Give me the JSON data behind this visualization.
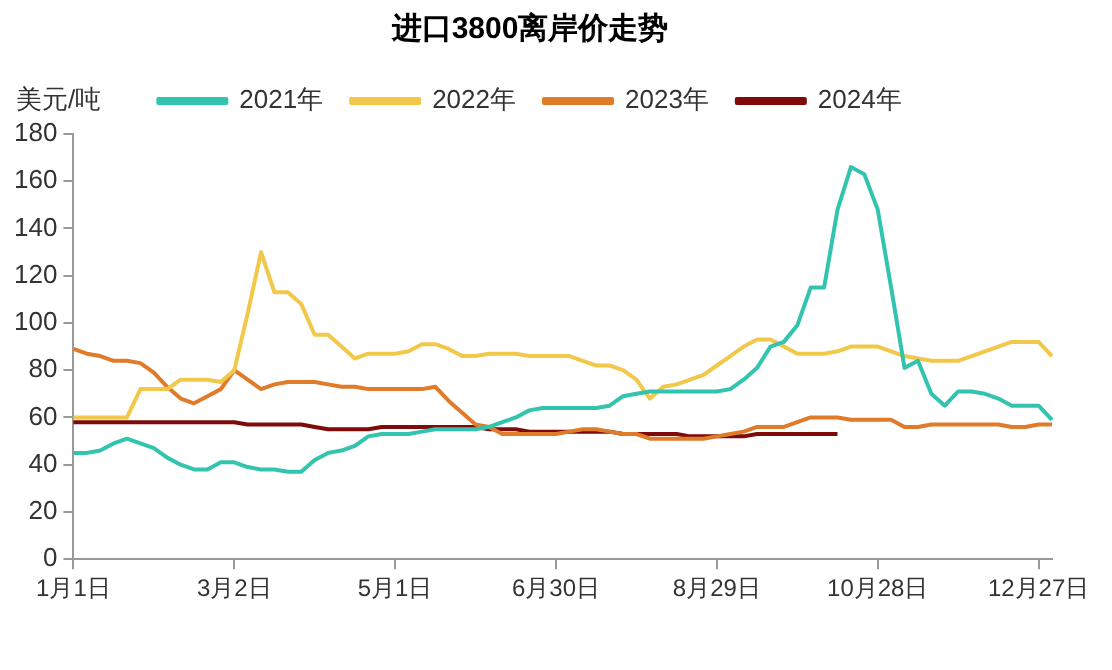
{
  "chart_data": {
    "type": "line",
    "title": "进口3800离岸价走势",
    "ylabel": "美元/吨",
    "categories": [
      "1月1日",
      null,
      null,
      null,
      null,
      null,
      null,
      null,
      null,
      null,
      null,
      null,
      "3月2日",
      null,
      null,
      null,
      null,
      null,
      null,
      null,
      null,
      null,
      null,
      null,
      "5月1日",
      null,
      null,
      null,
      null,
      null,
      null,
      null,
      null,
      null,
      null,
      null,
      "6月30日",
      null,
      null,
      null,
      null,
      null,
      null,
      null,
      null,
      null,
      null,
      null,
      "8月29日",
      null,
      null,
      null,
      null,
      null,
      null,
      null,
      null,
      null,
      null,
      null,
      "10月28日",
      null,
      null,
      null,
      null,
      null,
      null,
      null,
      null,
      null,
      null,
      null,
      "12月27日",
      null
    ],
    "series": [
      {
        "name": "2021年",
        "color": "#33c4b0",
        "values": [
          45,
          45,
          46,
          49,
          51,
          49,
          47,
          43,
          40,
          38,
          38,
          41,
          41,
          39,
          38,
          38,
          37,
          37,
          42,
          45,
          46,
          48,
          52,
          53,
          53,
          53,
          54,
          55,
          55,
          55,
          55,
          56,
          58,
          60,
          63,
          64,
          64,
          64,
          64,
          64,
          65,
          69,
          70,
          71,
          71,
          71,
          71,
          71,
          71,
          72,
          76,
          81,
          90,
          92,
          99,
          115,
          115,
          148,
          166,
          163,
          148,
          115,
          81,
          84,
          70,
          65,
          71,
          71,
          70,
          68,
          65,
          65,
          65,
          59
        ]
      },
      {
        "name": "2022年",
        "color": "#f2c84b",
        "values": [
          60,
          60,
          60,
          60,
          60,
          72,
          72,
          72,
          76,
          76,
          76,
          75,
          80,
          104,
          130,
          113,
          113,
          108,
          95,
          95,
          90,
          85,
          87,
          87,
          87,
          88,
          91,
          91,
          89,
          86,
          86,
          87,
          87,
          87,
          86,
          86,
          86,
          86,
          84,
          82,
          82,
          80,
          76,
          68,
          73,
          74,
          76,
          78,
          82,
          86,
          90,
          93,
          93,
          90,
          87,
          87,
          87,
          88,
          90,
          90,
          90,
          88,
          86,
          85,
          84,
          84,
          84,
          86,
          88,
          90,
          92,
          92,
          92,
          86
        ]
      },
      {
        "name": "2023年",
        "color": "#e07b2a",
        "values": [
          89,
          87,
          86,
          84,
          84,
          83,
          79,
          73,
          68,
          66,
          69,
          72,
          80,
          76,
          72,
          74,
          75,
          75,
          75,
          74,
          73,
          73,
          72,
          72,
          72,
          72,
          72,
          73,
          67,
          62,
          57,
          56,
          53,
          53,
          53,
          53,
          53,
          54,
          55,
          55,
          54,
          53,
          53,
          51,
          51,
          51,
          51,
          51,
          52,
          53,
          54,
          56,
          56,
          56,
          58,
          60,
          60,
          60,
          59,
          59,
          59,
          59,
          56,
          56,
          57,
          57,
          57,
          57,
          57,
          57,
          56,
          56,
          57,
          57
        ]
      },
      {
        "name": "2024年",
        "color": "#7f0a0a",
        "values": [
          58,
          58,
          58,
          58,
          58,
          58,
          58,
          58,
          58,
          58,
          58,
          58,
          58,
          57,
          57,
          57,
          57,
          57,
          56,
          55,
          55,
          55,
          55,
          56,
          56,
          56,
          56,
          56,
          56,
          56,
          56,
          55,
          55,
          55,
          54,
          54,
          54,
          54,
          54,
          54,
          54,
          53,
          53,
          53,
          53,
          53,
          52,
          52,
          52,
          52,
          52,
          53,
          53,
          53,
          53,
          53,
          53,
          53,
          null,
          null,
          null,
          null,
          null,
          null,
          null,
          null,
          null,
          null,
          null,
          null,
          null,
          null,
          null,
          null
        ]
      }
    ],
    "ylim": [
      0,
      180
    ],
    "yticks": [
      0,
      20,
      40,
      60,
      80,
      100,
      120,
      140,
      160,
      180
    ],
    "grid": false,
    "legend": "top",
    "marker": "none",
    "line_style": "solid"
  }
}
